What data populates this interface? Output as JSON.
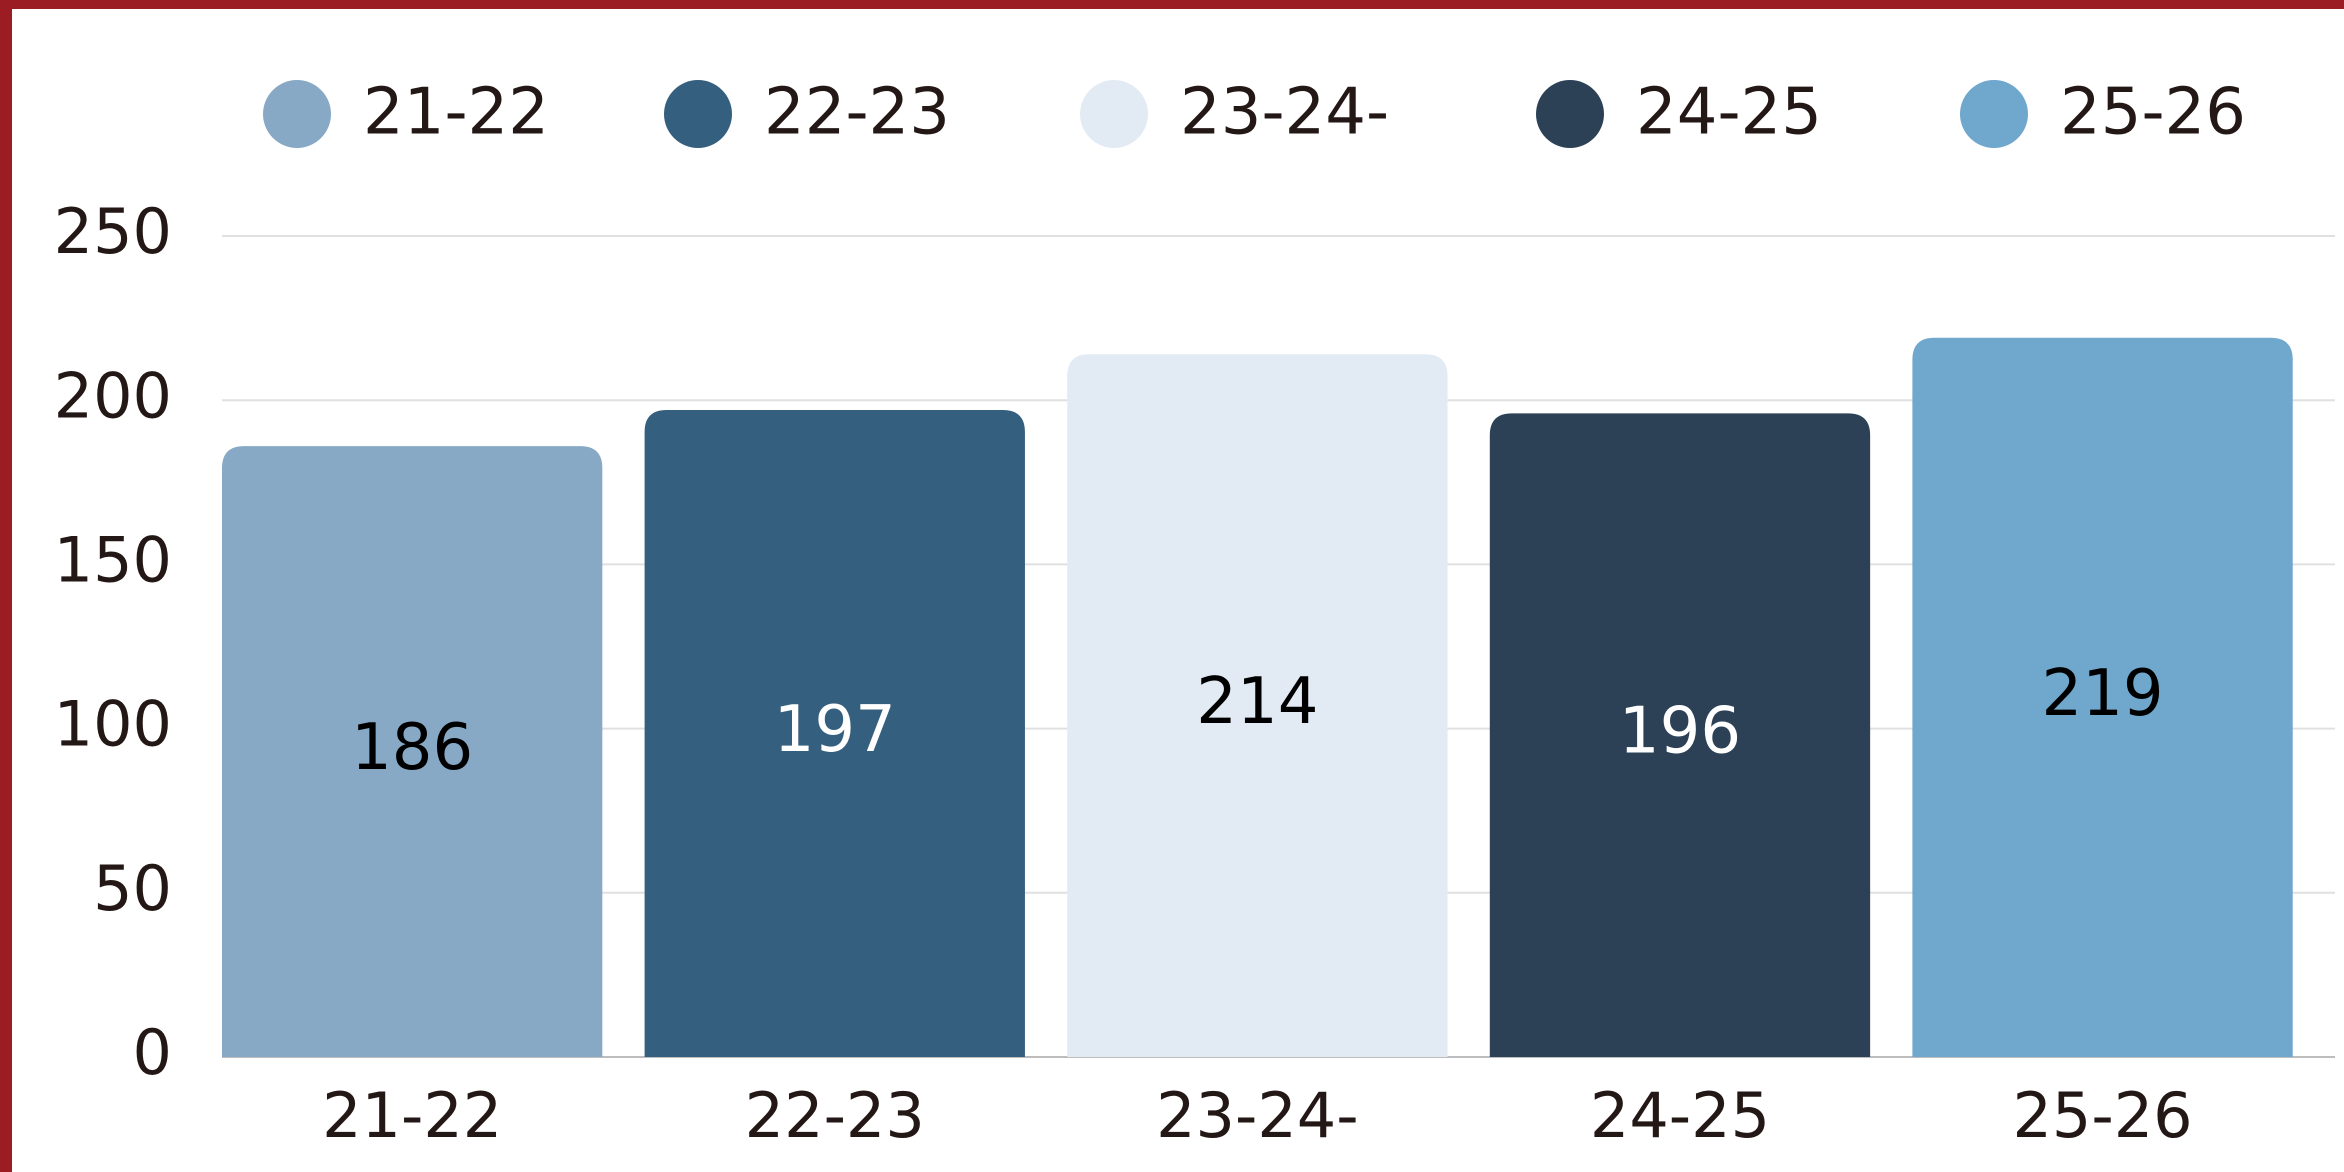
{
  "chart_data": {
    "type": "bar",
    "categories": [
      "21-22",
      "22-23",
      "23-24-",
      "24-25",
      "25-26"
    ],
    "values": [
      186,
      197,
      214,
      196,
      219
    ],
    "colors": [
      "#87a9c6",
      "#355f7e",
      "#e2ebf3",
      "#2c4156",
      "#6fa7cd"
    ],
    "ylim": [
      0,
      250
    ],
    "yticks": [
      0,
      50,
      100,
      150,
      200,
      250
    ],
    "grid": true,
    "legend": "top"
  }
}
